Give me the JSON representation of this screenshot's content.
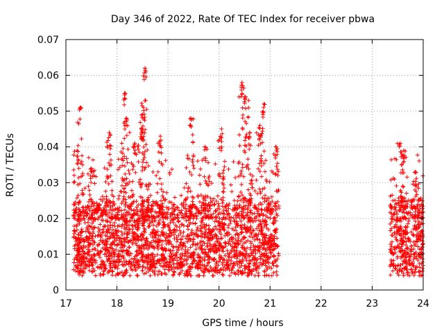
{
  "chart_data": {
    "type": "scatter",
    "title": "Day 346 of 2022, Rate Of TEC Index for receiver pbwa",
    "xlabel": "GPS time / hours",
    "ylabel": "ROTI / TECUs",
    "xlim": [
      17,
      24
    ],
    "ylim": [
      0,
      0.07
    ],
    "x_ticks": [
      17,
      18,
      19,
      20,
      21,
      22,
      23,
      24
    ],
    "x_tick_labels": [
      "17",
      "18",
      "19",
      "20",
      "21",
      "22",
      "23",
      "24"
    ],
    "y_ticks": [
      0,
      0.01,
      0.02,
      0.03,
      0.04,
      0.05,
      0.06,
      0.07
    ],
    "y_tick_labels": [
      "0",
      "0.01",
      "0.02",
      "0.03",
      "0.04",
      "0.05",
      "0.06",
      "0.07"
    ],
    "grid": true,
    "marker": "plus",
    "marker_color": "#ff0000",
    "series": [
      {
        "name": "ROTI",
        "segments": [
          {
            "x_start": 17.15,
            "x_end": 21.15
          },
          {
            "x_start": 23.35,
            "x_end": 24.0
          }
        ],
        "typical_range": [
          0.005,
          0.025
        ],
        "peaks": [
          {
            "x": 17.28,
            "y": 0.051
          },
          {
            "x": 17.22,
            "y": 0.039
          },
          {
            "x": 17.5,
            "y": 0.034
          },
          {
            "x": 17.85,
            "y": 0.044
          },
          {
            "x": 18.15,
            "y": 0.055
          },
          {
            "x": 18.18,
            "y": 0.048
          },
          {
            "x": 18.35,
            "y": 0.041
          },
          {
            "x": 18.48,
            "y": 0.045
          },
          {
            "x": 18.55,
            "y": 0.062
          },
          {
            "x": 18.52,
            "y": 0.051
          },
          {
            "x": 18.85,
            "y": 0.043
          },
          {
            "x": 19.45,
            "y": 0.048
          },
          {
            "x": 19.72,
            "y": 0.04
          },
          {
            "x": 20.05,
            "y": 0.045
          },
          {
            "x": 20.45,
            "y": 0.058
          },
          {
            "x": 20.52,
            "y": 0.054
          },
          {
            "x": 20.6,
            "y": 0.044
          },
          {
            "x": 20.8,
            "y": 0.046
          },
          {
            "x": 20.88,
            "y": 0.052
          },
          {
            "x": 21.12,
            "y": 0.04
          },
          {
            "x": 23.55,
            "y": 0.041
          },
          {
            "x": 23.62,
            "y": 0.039
          },
          {
            "x": 23.85,
            "y": 0.033
          },
          {
            "x": 23.97,
            "y": 0.024
          }
        ]
      }
    ]
  }
}
